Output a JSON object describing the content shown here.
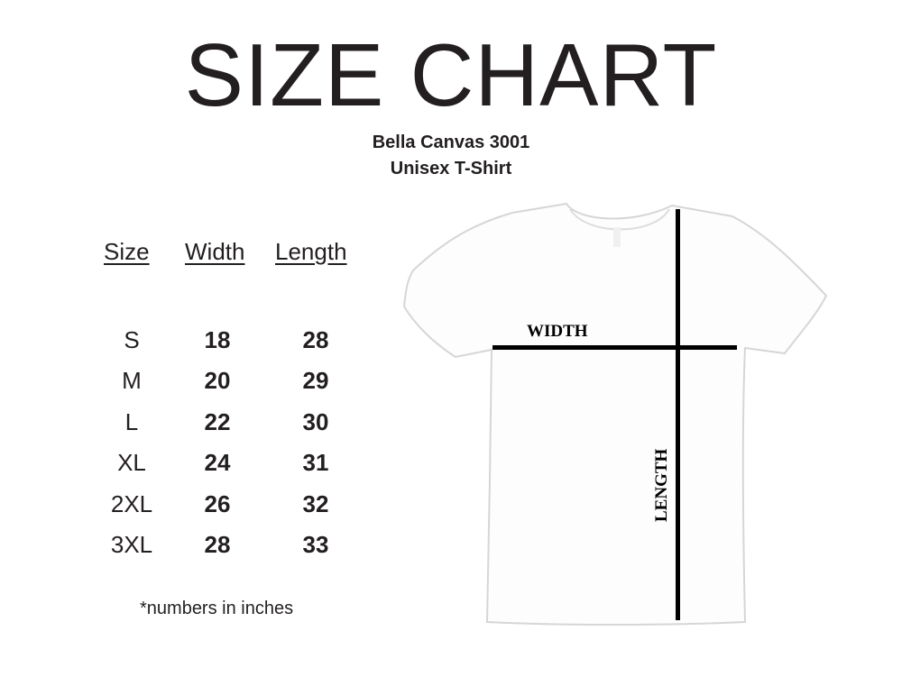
{
  "title": "SIZE CHART",
  "subtitle": "Bella Canvas 3001",
  "product_type": "Unisex T-Shirt",
  "table": {
    "headers": [
      "Size",
      "Width",
      "Length"
    ],
    "rows": [
      {
        "size": "S",
        "width": "18",
        "length": "28"
      },
      {
        "size": "M",
        "width": "20",
        "length": "29"
      },
      {
        "size": "L",
        "width": "22",
        "length": "30"
      },
      {
        "size": "XL",
        "width": "24",
        "length": "31"
      },
      {
        "size": "2XL",
        "width": "26",
        "length": "32"
      },
      {
        "size": "3XL",
        "width": "28",
        "length": "33"
      }
    ]
  },
  "note": "*numbers in inches",
  "diagram": {
    "width_label": "WIDTH",
    "length_label": "LENGTH",
    "shirt_color": "#ffffff",
    "line_color": "#000000"
  }
}
